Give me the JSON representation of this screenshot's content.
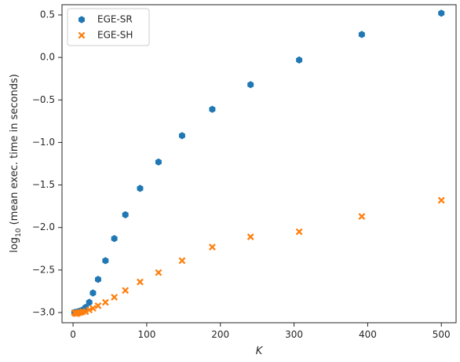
{
  "chart_data": {
    "type": "scatter",
    "title": "",
    "xlabel": "K",
    "ylabel_prefix": "log",
    "ylabel_sub": "10",
    "ylabel_rest": " (mean exec. time in seconds)",
    "xlim": [
      -15,
      520
    ],
    "ylim": [
      -3.12,
      0.62
    ],
    "xticks": [
      0,
      100,
      200,
      300,
      400,
      500
    ],
    "xtick_labels": [
      "0",
      "100",
      "200",
      "300",
      "400",
      "500"
    ],
    "yticks": [
      -3.0,
      -2.5,
      -2.0,
      -1.5,
      -1.0,
      -0.5,
      0.0,
      0.5
    ],
    "ytick_labels": [
      "−3.0",
      "−2.5",
      "−2.0",
      "−1.5",
      "−1.0",
      "−0.5",
      "0.0",
      "0.5"
    ],
    "grid": false,
    "legend_position": "top-left",
    "series": [
      {
        "name": "EGE-SR",
        "marker": "hexagon",
        "color": "#1f77b4",
        "points": [
          [
            2,
            -3.0
          ],
          [
            3,
            -3.0
          ],
          [
            4,
            -3.0
          ],
          [
            5,
            -3.0
          ],
          [
            6,
            -2.99
          ],
          [
            8,
            -2.99
          ],
          [
            10,
            -2.98
          ],
          [
            13,
            -2.97
          ],
          [
            17,
            -2.94
          ],
          [
            22,
            -2.88
          ],
          [
            27,
            -2.77
          ],
          [
            34,
            -2.61
          ],
          [
            44,
            -2.39
          ],
          [
            56,
            -2.13
          ],
          [
            71,
            -1.85
          ],
          [
            91,
            -1.54
          ],
          [
            116,
            -1.23
          ],
          [
            148,
            -0.92
          ],
          [
            189,
            -0.61
          ],
          [
            241,
            -0.32
          ],
          [
            307,
            -0.03
          ],
          [
            392,
            0.27
          ],
          [
            500,
            0.52
          ]
        ]
      },
      {
        "name": "EGE-SH",
        "marker": "x",
        "color": "#ff7f0e",
        "points": [
          [
            2,
            -3.0
          ],
          [
            3,
            -3.01
          ],
          [
            4,
            -3.01
          ],
          [
            5,
            -3.01
          ],
          [
            6,
            -3.01
          ],
          [
            8,
            -3.0
          ],
          [
            10,
            -3.0
          ],
          [
            13,
            -2.99
          ],
          [
            17,
            -2.99
          ],
          [
            22,
            -2.97
          ],
          [
            27,
            -2.95
          ],
          [
            34,
            -2.92
          ],
          [
            44,
            -2.88
          ],
          [
            56,
            -2.82
          ],
          [
            71,
            -2.74
          ],
          [
            91,
            -2.64
          ],
          [
            116,
            -2.53
          ],
          [
            148,
            -2.39
          ],
          [
            189,
            -2.23
          ],
          [
            241,
            -2.11
          ],
          [
            307,
            -2.05
          ],
          [
            392,
            -1.87
          ],
          [
            500,
            -1.68
          ]
        ]
      }
    ]
  }
}
